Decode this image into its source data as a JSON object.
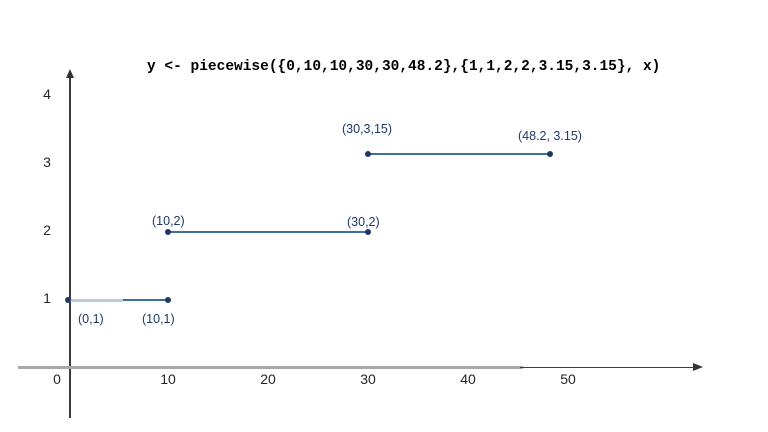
{
  "chart_data": {
    "type": "line",
    "title": "y <- piecewise({0,10,10,30,30,48.2},{1,1,2,2,3.15,3.15}, x)",
    "xlabel": "",
    "ylabel": "",
    "xlim": [
      0,
      62
    ],
    "ylim": [
      0,
      4.4
    ],
    "grid": false,
    "legend": "none",
    "x_ticks": [
      "0",
      "10",
      "20",
      "30",
      "40",
      "50"
    ],
    "y_ticks": [
      "1",
      "2",
      "3",
      "4"
    ],
    "segments": [
      {
        "left_highlight": true,
        "points": [
          {
            "x": 0,
            "y": 1,
            "label": "(0,1)",
            "label_offset": [
              10,
              12
            ]
          },
          {
            "x": 10,
            "y": 1,
            "label": "(10,1)",
            "label_offset": [
              -26,
              12
            ]
          }
        ]
      },
      {
        "left_highlight": false,
        "points": [
          {
            "x": 10,
            "y": 2,
            "label": "(10,2)",
            "label_offset": [
              -16,
              -18
            ]
          },
          {
            "x": 30,
            "y": 2,
            "label": "(30,2)",
            "label_offset": [
              -21,
              -17
            ]
          }
        ]
      },
      {
        "left_highlight": false,
        "points": [
          {
            "x": 30,
            "y": 3.15,
            "label": "(30,3,15)",
            "label_offset": [
              -26,
              -32
            ]
          },
          {
            "x": 48.2,
            "y": 3.15,
            "label": "(48.2, 3.15)",
            "label_offset": [
              -32,
              -25
            ]
          }
        ]
      }
    ],
    "colors": {
      "title": "#000000",
      "segment_line": "#3F6E9A",
      "segment_highlight": "#B9CBDE",
      "point": "#1F3864",
      "point_label": "#1F3864",
      "tick_label": "#262626",
      "axis_gray": "#A8A8A8",
      "axis_dark": "#3B3B3B"
    }
  }
}
